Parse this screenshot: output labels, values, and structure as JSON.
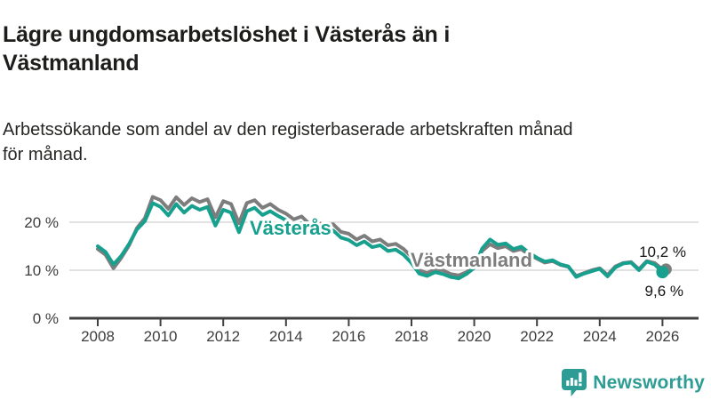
{
  "title": {
    "lines": [
      "Lägre ungdomsarbetslöshet i Västerås än i",
      "Västmanland"
    ]
  },
  "subtitle": {
    "lines": [
      "Arbetssökande som andel av den registerbaserade arbetskraften månad",
      "för månad."
    ]
  },
  "footer": {
    "brand": "Newsworthy",
    "brand_color": "#2d9c94",
    "logo_icon": "bar-chart-speech-bubble-icon"
  },
  "chart_data": {
    "type": "line",
    "title": "Lägre ungdomsarbetslöshet i Västerås än i Västmanland",
    "subtitle": "Arbetssökande som andel av den registerbaserade arbetskraften månad för månad.",
    "xlabel": "",
    "ylabel": "",
    "grid": true,
    "x_axis": {
      "ticks": [
        2008,
        2010,
        2012,
        2014,
        2016,
        2018,
        2020,
        2022,
        2024,
        2026
      ],
      "range": [
        2007.1,
        2027.1
      ]
    },
    "y_axis": {
      "ticks": [
        {
          "value": 0,
          "label": "0 %"
        },
        {
          "value": 10,
          "label": "10 %"
        },
        {
          "value": 20,
          "label": "20 %"
        }
      ],
      "range": [
        0,
        27
      ]
    },
    "x_start": 2008.0,
    "x_step_years": 0.25,
    "legend_position": "inline-labels",
    "series": [
      {
        "name": "Västerås",
        "color": "#18a08f",
        "end_value": 9.6,
        "end_label": "9,6 %",
        "values": [
          15.0,
          13.8,
          11.2,
          13.0,
          15.5,
          18.5,
          20.2,
          24.0,
          23.2,
          21.4,
          23.8,
          22.0,
          23.4,
          22.6,
          23.2,
          19.3,
          22.6,
          22.0,
          17.9,
          22.3,
          23.0,
          21.5,
          22.3,
          21.3,
          20.4,
          19.3,
          19.8,
          18.3,
          18.8,
          18.0,
          18.3,
          16.8,
          16.3,
          15.2,
          16.0,
          14.8,
          15.2,
          14.0,
          14.3,
          13.2,
          11.5,
          9.3,
          8.8,
          9.6,
          9.2,
          8.6,
          8.3,
          9.2,
          10.5,
          14.5,
          16.4,
          15.3,
          15.6,
          14.4,
          14.9,
          13.6,
          12.6,
          11.8,
          12.1,
          11.2,
          10.8,
          8.6,
          9.3,
          9.8,
          10.3,
          8.7,
          10.6,
          11.4,
          11.6,
          10.0,
          11.8,
          11.2,
          9.6
        ]
      },
      {
        "name": "Västmanland",
        "color": "#7d7d7d",
        "end_value": 10.2,
        "end_label": "10,2 %",
        "values": [
          14.4,
          13.2,
          10.4,
          12.6,
          15.2,
          18.8,
          20.8,
          25.3,
          24.6,
          22.8,
          25.2,
          23.6,
          25.0,
          24.2,
          24.8,
          21.0,
          24.4,
          23.8,
          19.8,
          24.0,
          24.6,
          23.0,
          23.8,
          22.6,
          21.8,
          20.6,
          21.2,
          19.6,
          20.0,
          19.2,
          19.6,
          18.0,
          17.6,
          16.4,
          17.2,
          16.0,
          16.4,
          15.2,
          15.5,
          14.4,
          12.8,
          10.0,
          9.4,
          10.2,
          10.0,
          9.2,
          8.9,
          9.6,
          10.8,
          14.0,
          15.4,
          14.6,
          15.0,
          14.0,
          14.4,
          13.2,
          12.4,
          11.6,
          11.9,
          11.1,
          10.7,
          8.8,
          9.4,
          10.0,
          10.4,
          9.0,
          10.8,
          11.5,
          11.7,
          10.2,
          11.9,
          11.5,
          10.2
        ]
      }
    ]
  }
}
